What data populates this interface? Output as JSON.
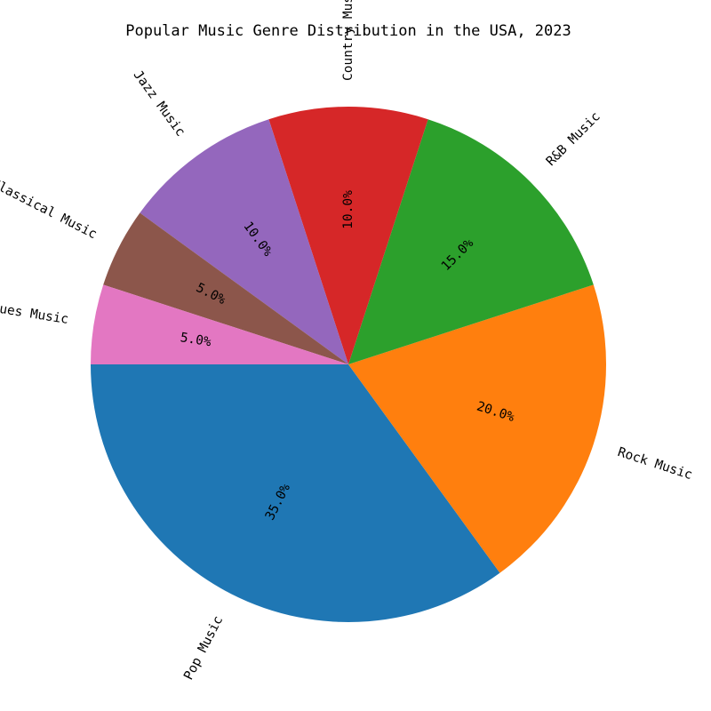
{
  "chart_data": {
    "type": "pie",
    "title": "Popular Music Genre Distribution in the USA, 2023",
    "categories": [
      "Pop Music",
      "Rock Music",
      "R&B Music",
      "Country Music",
      "Jazz Music",
      "Classical Music",
      "Blues Music"
    ],
    "values": [
      35.0,
      20.0,
      15.0,
      10.0,
      10.0,
      5.0,
      5.0
    ],
    "value_labels": [
      "35.0%",
      "20.0%",
      "15.0%",
      "10.0%",
      "10.0%",
      "5.0%",
      "5.0%"
    ],
    "colors": [
      "#1f77b4",
      "#ff7f0e",
      "#2ca02c",
      "#d62728",
      "#9467bd",
      "#8c564b",
      "#e377c2"
    ],
    "start_angle_deg": 180,
    "direction": "counterclockwise",
    "rotated_labels": true
  }
}
